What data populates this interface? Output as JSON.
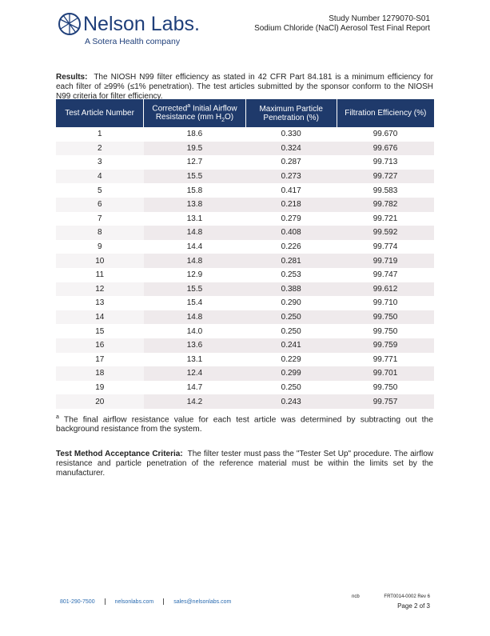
{
  "header": {
    "logo": "Nelson Labs.",
    "tagline": "A Sotera Health company",
    "study_number": "Study Number 1279070-S01",
    "report_title": "Sodium Chloride (NaCl) Aerosol Test Final Report"
  },
  "results": {
    "label": "Results:",
    "text": "The NIOSH N99 filter efficiency as stated in 42 CFR Part 84.181 is a minimum efficiency for each filter of ≥99% (≤1% penetration).  The test articles submitted by the sponsor conform to the NIOSH N99 criteria for filter efficiency."
  },
  "table": {
    "columns": [
      [
        "Test Article Number"
      ],
      [
        "Corrected",
        "a",
        " Initial Airflow Resistance (mm H",
        "2",
        "O)"
      ],
      [
        "Maximum Particle Penetration (%)"
      ],
      [
        "Filtration Efficiency (%)"
      ]
    ],
    "rows": [
      [
        "1",
        "18.6",
        "0.330",
        "99.670"
      ],
      [
        "2",
        "19.5",
        "0.324",
        "99.676"
      ],
      [
        "3",
        "12.7",
        "0.287",
        "99.713"
      ],
      [
        "4",
        "15.5",
        "0.273",
        "99.727"
      ],
      [
        "5",
        "15.8",
        "0.417",
        "99.583"
      ],
      [
        "6",
        "13.8",
        "0.218",
        "99.782"
      ],
      [
        "7",
        "13.1",
        "0.279",
        "99.721"
      ],
      [
        "8",
        "14.8",
        "0.408",
        "99.592"
      ],
      [
        "9",
        "14.4",
        "0.226",
        "99.774"
      ],
      [
        "10",
        "14.8",
        "0.281",
        "99.719"
      ],
      [
        "11",
        "12.9",
        "0.253",
        "99.747"
      ],
      [
        "12",
        "15.5",
        "0.388",
        "99.612"
      ],
      [
        "13",
        "15.4",
        "0.290",
        "99.710"
      ],
      [
        "14",
        "14.8",
        "0.250",
        "99.750"
      ],
      [
        "15",
        "14.0",
        "0.250",
        "99.750"
      ],
      [
        "16",
        "13.6",
        "0.241",
        "99.759"
      ],
      [
        "17",
        "13.1",
        "0.229",
        "99.771"
      ],
      [
        "18",
        "12.4",
        "0.299",
        "99.701"
      ],
      [
        "19",
        "14.7",
        "0.250",
        "99.750"
      ],
      [
        "20",
        "14.2",
        "0.243",
        "99.757"
      ]
    ]
  },
  "footnote": {
    "marker": "a",
    "text": "The final airflow resistance value for each test article was determined by subtracting out the background resistance from the system."
  },
  "criteria": {
    "label": "Test Method Acceptance Criteria:",
    "text": "The filter tester must pass the \"Tester Set Up\" procedure.  The airflow resistance and particle penetration of the reference material must be within the limits set by the manufacturer."
  },
  "footer": {
    "phone": "801-290-7500",
    "website": "nelsonlabs.com",
    "email": "sales@nelsonlabs.com",
    "initials": "ncb",
    "form_number": "FRT0014-0002 Rev 6",
    "page": "Page 2 of 3"
  }
}
